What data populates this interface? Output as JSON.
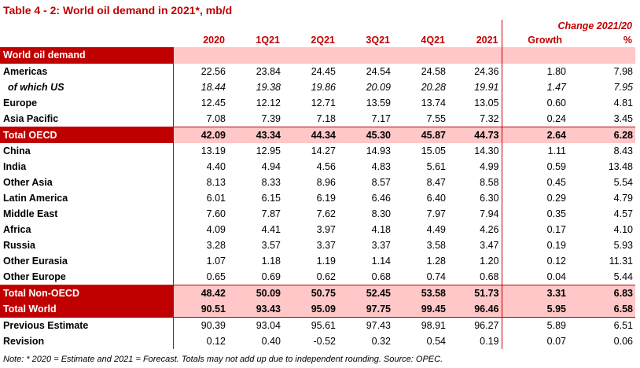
{
  "title": "Table 4 - 2: World oil demand in 2021*, mb/d",
  "header": {
    "change_label": "Change 2021/20",
    "columns": [
      "2020",
      "1Q21",
      "2Q21",
      "3Q21",
      "4Q21",
      "2021",
      "Growth",
      "%"
    ]
  },
  "section_label": "World oil demand",
  "rows": [
    {
      "label": "Americas",
      "values": [
        "22.56",
        "23.84",
        "24.45",
        "24.54",
        "24.58",
        "24.36",
        "1.80",
        "7.98"
      ]
    },
    {
      "label": "of which US",
      "values": [
        "18.44",
        "19.38",
        "19.86",
        "20.09",
        "20.28",
        "19.91",
        "1.47",
        "7.95"
      ]
    },
    {
      "label": "Europe",
      "values": [
        "12.45",
        "12.12",
        "12.71",
        "13.59",
        "13.74",
        "13.05",
        "0.60",
        "4.81"
      ]
    },
    {
      "label": "Asia Pacific",
      "values": [
        "7.08",
        "7.39",
        "7.18",
        "7.17",
        "7.55",
        "7.32",
        "0.24",
        "3.45"
      ]
    },
    {
      "label": "Total OECD",
      "values": [
        "42.09",
        "43.34",
        "44.34",
        "45.30",
        "45.87",
        "44.73",
        "2.64",
        "6.28"
      ]
    },
    {
      "label": "China",
      "values": [
        "13.19",
        "12.95",
        "14.27",
        "14.93",
        "15.05",
        "14.30",
        "1.11",
        "8.43"
      ]
    },
    {
      "label": "India",
      "values": [
        "4.40",
        "4.94",
        "4.56",
        "4.83",
        "5.61",
        "4.99",
        "0.59",
        "13.48"
      ]
    },
    {
      "label": "Other Asia",
      "values": [
        "8.13",
        "8.33",
        "8.96",
        "8.57",
        "8.47",
        "8.58",
        "0.45",
        "5.54"
      ]
    },
    {
      "label": "Latin America",
      "values": [
        "6.01",
        "6.15",
        "6.19",
        "6.46",
        "6.40",
        "6.30",
        "0.29",
        "4.79"
      ]
    },
    {
      "label": "Middle East",
      "values": [
        "7.60",
        "7.87",
        "7.62",
        "8.30",
        "7.97",
        "7.94",
        "0.35",
        "4.57"
      ]
    },
    {
      "label": "Africa",
      "values": [
        "4.09",
        "4.41",
        "3.97",
        "4.18",
        "4.49",
        "4.26",
        "0.17",
        "4.10"
      ]
    },
    {
      "label": "Russia",
      "values": [
        "3.28",
        "3.57",
        "3.37",
        "3.37",
        "3.58",
        "3.47",
        "0.19",
        "5.93"
      ]
    },
    {
      "label": "Other Eurasia",
      "values": [
        "1.07",
        "1.18",
        "1.19",
        "1.14",
        "1.28",
        "1.20",
        "0.12",
        "11.31"
      ]
    },
    {
      "label": "Other Europe",
      "values": [
        "0.65",
        "0.69",
        "0.62",
        "0.68",
        "0.74",
        "0.68",
        "0.04",
        "5.44"
      ]
    },
    {
      "label": "Total Non-OECD",
      "values": [
        "48.42",
        "50.09",
        "50.75",
        "52.45",
        "53.58",
        "51.73",
        "3.31",
        "6.83"
      ]
    },
    {
      "label": "Total World",
      "values": [
        "90.51",
        "93.43",
        "95.09",
        "97.75",
        "99.45",
        "96.46",
        "5.95",
        "6.58"
      ]
    },
    {
      "label": "Previous Estimate",
      "values": [
        "90.39",
        "93.04",
        "95.61",
        "97.43",
        "98.91",
        "96.27",
        "5.89",
        "6.51"
      ]
    },
    {
      "label": "Revision",
      "values": [
        "0.12",
        "0.40",
        "-0.52",
        "0.32",
        "0.54",
        "0.19",
        "0.07",
        "0.06"
      ]
    }
  ],
  "note": "Note: * 2020 = Estimate and 2021 = Forecast. Totals may not add up due to independent rounding. Source: OPEC.",
  "colors": {
    "accent": "#c00000",
    "highlight": "#ffc7c7"
  }
}
